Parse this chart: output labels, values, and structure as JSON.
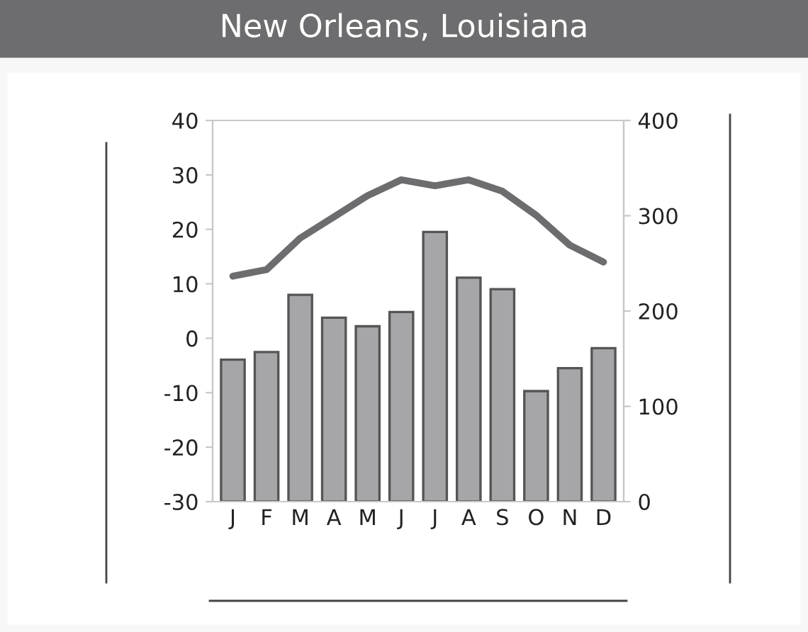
{
  "chart_data": {
    "type": "bar",
    "title": "New Orleans, Louisiana",
    "categories": [
      "J",
      "F",
      "M",
      "A",
      "M",
      "J",
      "J",
      "A",
      "S",
      "O",
      "N",
      "D"
    ],
    "series": [
      {
        "axis": "y2",
        "color": "#a6a6a9",
        "values": [
          149,
          157,
          217,
          193,
          184,
          199,
          283,
          235,
          223,
          116,
          140,
          161
        ]
      },
      {
        "type": "line",
        "axis": "y",
        "color": "#6d6d6f",
        "values": [
          11.4,
          12.6,
          18.4,
          22.3,
          26.2,
          29.1,
          28.0,
          29.1,
          27.0,
          22.6,
          17.1,
          14.0
        ]
      }
    ],
    "ylim": [
      -30,
      40
    ],
    "yticks": [
      -30,
      -20,
      -10,
      0,
      10,
      20,
      30,
      40
    ],
    "y2lim": [
      0,
      400
    ],
    "y2ticks": [
      0,
      100,
      200,
      300,
      400
    ],
    "grid": false,
    "legend": false
  }
}
